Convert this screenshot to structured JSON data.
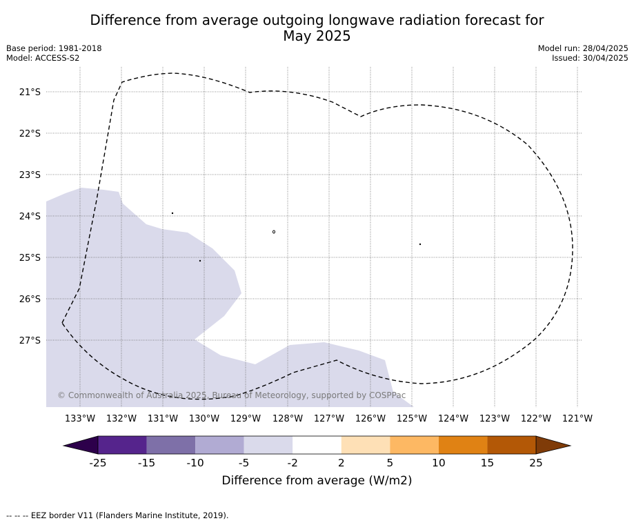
{
  "title_line1": "Difference from average outgoing longwave radiation forecast for",
  "title_line2": "May 2025",
  "base_period": "Base period: 1981-2018",
  "model": "Model: ACCESS-S2",
  "model_run": "Model run: 28/04/2025",
  "issued": "Issued: 30/04/2025",
  "lat_labels": [
    "21°S",
    "22°S",
    "23°S",
    "24°S",
    "25°S",
    "26°S",
    "27°S"
  ],
  "lon_labels": [
    "133°W",
    "132°W",
    "131°W",
    "130°W",
    "129°W",
    "128°W",
    "127°W",
    "126°W",
    "125°W",
    "124°W",
    "123°W",
    "122°W",
    "121°W"
  ],
  "copyright": "© Commonwealth of Australia 2025, Bureau of Meteorology, supported by COSPPac",
  "colorbar": {
    "ticks": [
      "-25",
      "-15",
      "-10",
      "-5",
      "-2",
      "2",
      "5",
      "10",
      "15",
      "25"
    ],
    "colors": [
      "#55248c",
      "#7e70a8",
      "#b1abd3",
      "#dadaeb",
      "#ffffff",
      "#fee0b6",
      "#fdb863",
      "#e08214",
      "#b35806"
    ],
    "under_color": "#2d004b",
    "over_color": "#7f3b08",
    "label": "Difference from average (W/m2)"
  },
  "legend_dash": "--  --  --",
  "legend_text": "EEZ border V11 (Flanders Marine Institute, 2019).",
  "map_fill_color": "#dadaeb"
}
